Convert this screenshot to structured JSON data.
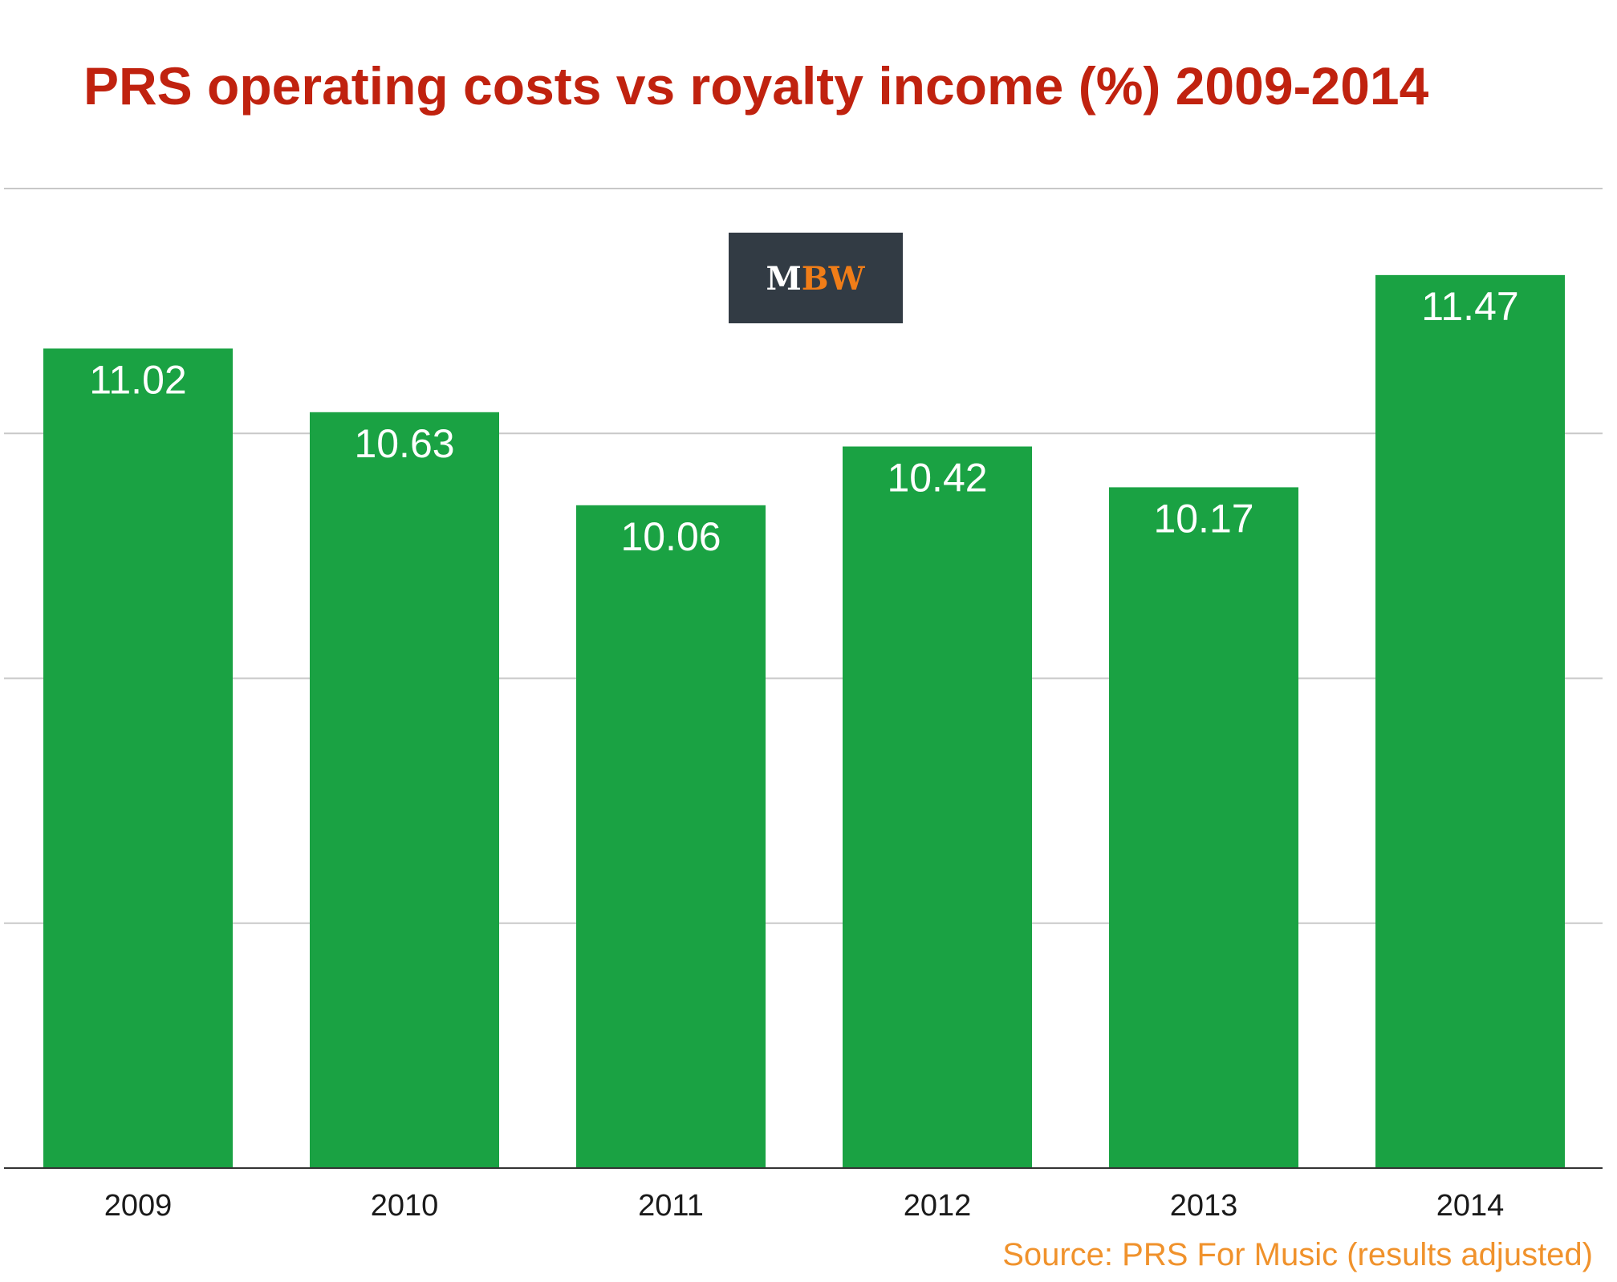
{
  "logo": {
    "text_m": "M",
    "text_bw": "BW",
    "background": "#323b44",
    "m_color": "#ffffff",
    "bw_color": "#f07d18"
  },
  "chart_data": {
    "type": "bar",
    "title": "PRS operating costs vs royalty income (%) 2009-2014",
    "categories": [
      "2009",
      "2010",
      "2011",
      "2012",
      "2013",
      "2014"
    ],
    "values": [
      11.02,
      10.63,
      10.06,
      10.42,
      10.17,
      11.47
    ],
    "value_labels": [
      "11.02",
      "10.63",
      "10.06",
      "10.42",
      "10.17",
      "11.47"
    ],
    "ylim": [
      6,
      12
    ],
    "grid": true,
    "legend": "none",
    "bar_color": "#1aa243",
    "title_color": "#c0220f",
    "source": "Source: PRS For Music (results adjusted)",
    "source_color": "#f0922c"
  }
}
